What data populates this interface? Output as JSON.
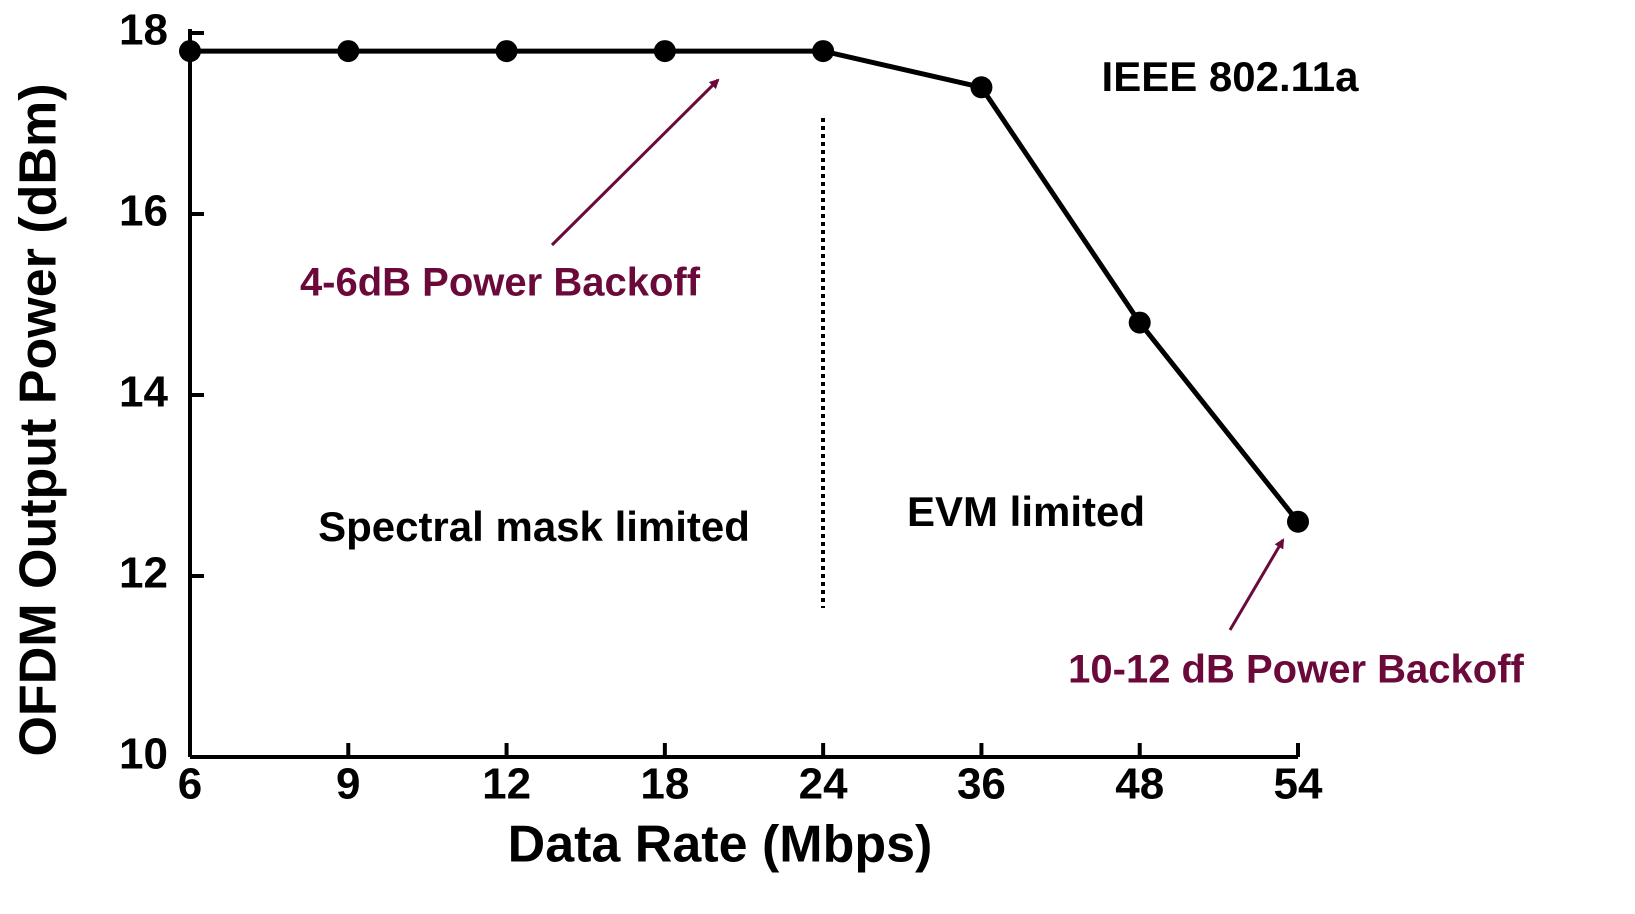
{
  "chart_data": {
    "type": "line",
    "x_label": "Data Rate (Mbps)",
    "y_label": "OFDM Output Power (dBm)",
    "categories": [
      "6",
      "9",
      "12",
      "18",
      "24",
      "36",
      "48",
      "54"
    ],
    "series": [
      {
        "name": "OFDM Output Power",
        "color": "#000000",
        "values": [
          17.8,
          17.8,
          17.8,
          17.8,
          17.8,
          17.4,
          14.8,
          12.6
        ]
      }
    ],
    "ylim": [
      10,
      18
    ],
    "yticks": [
      10,
      12,
      14,
      16,
      18
    ],
    "annotations": [
      "IEEE 802.11a",
      "4-6dB Power Backoff",
      "Spectral mask limited",
      "EVM limited",
      "10-12 dB Power Backoff"
    ]
  }
}
